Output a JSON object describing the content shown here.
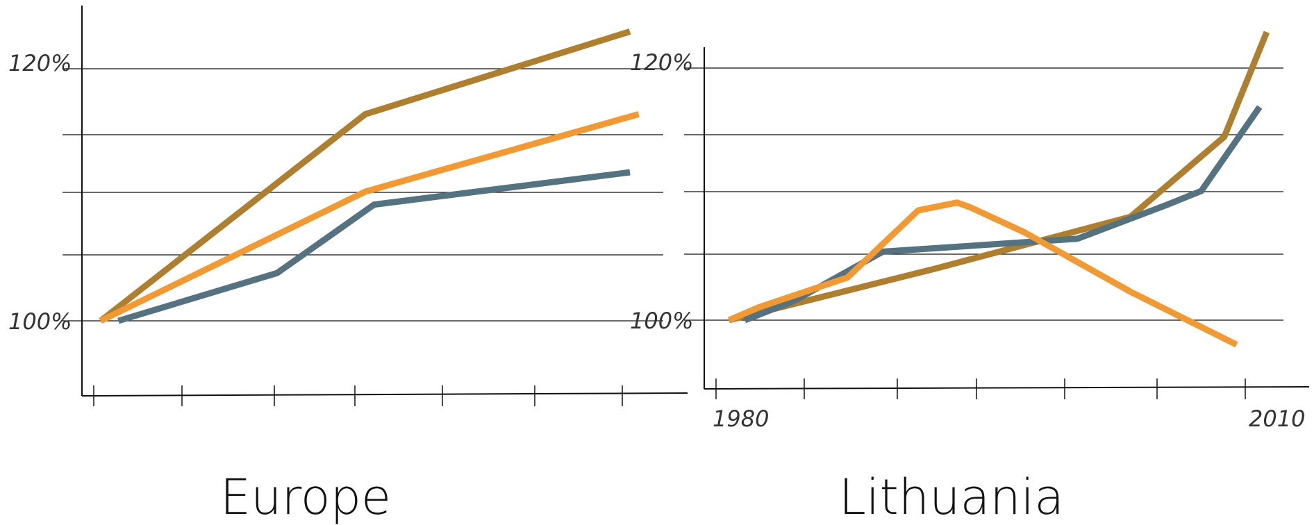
{
  "chart_data": [
    {
      "type": "line",
      "title": "Europe",
      "xlabel": "",
      "ylabel": "",
      "x_tick_labels": [],
      "y_tick_labels": [
        "100%",
        "120%"
      ],
      "ylim": [
        94,
        125
      ],
      "xlim": [
        0,
        7.7
      ],
      "grid": true,
      "legend": "none",
      "series": [
        {
          "color": "#ad7f2e",
          "x": [
            0,
            3,
            6
          ],
          "y": [
            100,
            116,
            122.4
          ]
        },
        {
          "color": "#f19a33",
          "x": [
            0,
            3,
            6.1
          ],
          "y": [
            100,
            110,
            116
          ]
        },
        {
          "color": "#557281",
          "x": [
            0.2,
            2,
            3.1,
            6
          ],
          "y": [
            100,
            103.7,
            109,
            111.5
          ]
        }
      ]
    },
    {
      "type": "line",
      "title": "Lithuania",
      "xlabel": "",
      "ylabel": "",
      "x_tick_labels": [
        "1980",
        "2010"
      ],
      "y_tick_labels": [
        "100%",
        "120%"
      ],
      "xlim": [
        1979,
        2014
      ],
      "ylim": [
        94,
        125
      ],
      "grid": true,
      "legend": "none",
      "series": [
        {
          "color": "#ad7f2e",
          "x": [
            1980.3,
            1992,
            2003,
            2008.3,
            2010.7
          ],
          "y": [
            100,
            104,
            108,
            114.2,
            122.3
          ]
        },
        {
          "color": "#557281",
          "x": [
            1981.2,
            1984,
            1989,
            2000,
            2005,
            2007,
            2010.3
          ],
          "y": [
            100,
            101.5,
            105.3,
            106.3,
            108.9,
            110,
            116.5
          ]
        },
        {
          "color": "#f19a33",
          "x": [
            1980.3,
            1982,
            1987,
            1991,
            1993.2,
            1994,
            1997,
            2003,
            2009
          ],
          "y": [
            100,
            101,
            103.3,
            108.5,
            109.1,
            108.7,
            106.8,
            102.2,
            98.1
          ]
        }
      ]
    }
  ]
}
